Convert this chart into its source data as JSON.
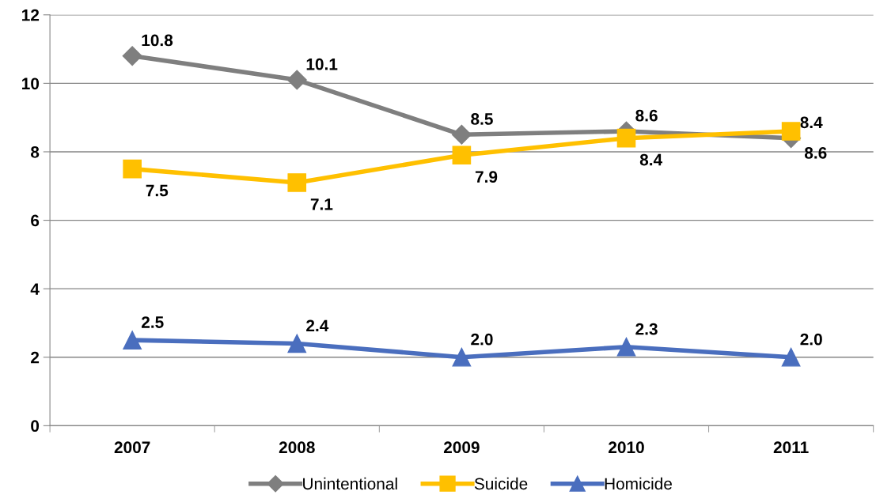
{
  "chart_data": {
    "type": "line",
    "categories": [
      "2007",
      "2008",
      "2009",
      "2010",
      "2011"
    ],
    "series": [
      {
        "name": "Unintentional",
        "color": "#7f7f7f",
        "marker": "diamond",
        "values": [
          10.8,
          10.1,
          8.5,
          8.6,
          8.4
        ],
        "value_labels": [
          "10.8",
          "10.1",
          "8.5",
          "8.6",
          "8.4"
        ]
      },
      {
        "name": "Suicide",
        "color": "#ffc000",
        "marker": "square",
        "values": [
          7.5,
          7.1,
          7.9,
          8.4,
          8.6
        ],
        "value_labels": [
          "7.5",
          "7.1",
          "7.9",
          "8.4",
          "8.6"
        ]
      },
      {
        "name": "Homicide",
        "color": "#4a6ebe",
        "marker": "triangle",
        "values": [
          2.5,
          2.4,
          2.0,
          2.3,
          2.0
        ],
        "value_labels": [
          "2.5",
          "2.4",
          "2.0",
          "2.3",
          "2.0"
        ]
      }
    ],
    "ylim": [
      0,
      12
    ],
    "yticks": [
      0,
      2,
      4,
      6,
      8,
      10,
      12
    ],
    "grid": "y",
    "legend": "bottom",
    "line_style": "solid"
  }
}
